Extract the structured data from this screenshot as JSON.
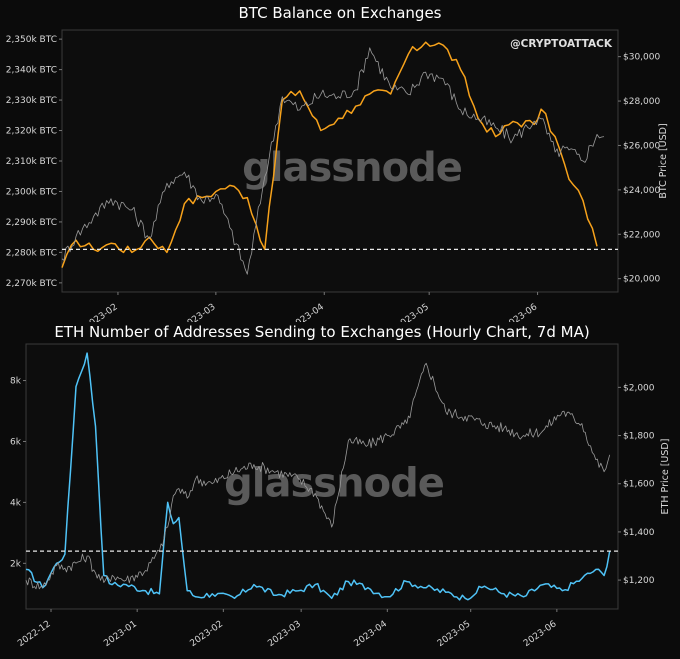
{
  "chart_data": [
    {
      "type": "line",
      "title": "BTC Balance on Exchanges",
      "watermark": "glassnode",
      "handle": "@CRYPTOATTACK",
      "ylabel_right": "BTC Price [USD]",
      "x_ticks": [
        "2023-02",
        "2023-03",
        "2023-04",
        "2023-05",
        "2023-06"
      ],
      "y_left_ticks": [
        "2,270k BTC",
        "2,280k BTC",
        "2,290k BTC",
        "2,300k BTC",
        "2,310k BTC",
        "2,320k BTC",
        "2,330k BTC",
        "2,340k BTC",
        "2,350k BTC"
      ],
      "y_left_values": [
        2270,
        2280,
        2290,
        2300,
        2310,
        2320,
        2330,
        2340,
        2350
      ],
      "y_right_ticks": [
        "$20,000",
        "$22,000",
        "$24,000",
        "$26,000",
        "$28,000",
        "$30,000"
      ],
      "y_right_values": [
        20000,
        22000,
        24000,
        26000,
        28000,
        30000
      ],
      "ylim_left": [
        2267,
        2353
      ],
      "ylim_right": [
        19400,
        31200
      ],
      "xlim": [
        "2023-01-16",
        "2023-06-24"
      ],
      "grid": false,
      "series": [
        {
          "axis": "left",
          "color": "#f7a21b",
          "x": [
            "2023-01-16",
            "2023-01-20",
            "2023-01-25",
            "2023-01-30",
            "2023-02-05",
            "2023-02-10",
            "2023-02-15",
            "2023-02-20",
            "2023-02-25",
            "2023-03-01",
            "2023-03-05",
            "2023-03-10",
            "2023-03-15",
            "2023-03-20",
            "2023-03-25",
            "2023-03-31",
            "2023-04-05",
            "2023-04-10",
            "2023-04-14",
            "2023-04-20",
            "2023-04-25",
            "2023-04-30",
            "2023-05-05",
            "2023-05-10",
            "2023-05-15",
            "2023-05-20",
            "2023-05-25",
            "2023-05-31",
            "2023-06-02",
            "2023-06-06",
            "2023-06-10",
            "2023-06-14",
            "2023-06-18"
          ],
          "values": [
            2275,
            2284,
            2281,
            2283,
            2280,
            2285,
            2280,
            2296,
            2298,
            2300,
            2302,
            2298,
            2281,
            2330,
            2333,
            2320,
            2324,
            2328,
            2332,
            2332,
            2345,
            2349,
            2348,
            2340,
            2324,
            2318,
            2323,
            2322,
            2327,
            2318,
            2304,
            2297,
            2282
          ]
        },
        {
          "axis": "right",
          "color": "#9a9a9a",
          "x": [
            "2023-01-16",
            "2023-01-20",
            "2023-01-25",
            "2023-01-30",
            "2023-02-05",
            "2023-02-10",
            "2023-02-15",
            "2023-02-20",
            "2023-02-25",
            "2023-03-01",
            "2023-03-05",
            "2023-03-10",
            "2023-03-15",
            "2023-03-20",
            "2023-03-25",
            "2023-03-31",
            "2023-04-05",
            "2023-04-10",
            "2023-04-14",
            "2023-04-20",
            "2023-04-25",
            "2023-04-30",
            "2023-05-05",
            "2023-05-10",
            "2023-05-15",
            "2023-05-20",
            "2023-05-25",
            "2023-05-31",
            "2023-06-02",
            "2023-06-06",
            "2023-06-10",
            "2023-06-14",
            "2023-06-18",
            "2023-06-20"
          ],
          "values": [
            20900,
            21900,
            22800,
            23600,
            23100,
            21800,
            24300,
            24800,
            23500,
            23800,
            22300,
            20200,
            24600,
            28200,
            27600,
            28300,
            28200,
            28500,
            30400,
            28600,
            28300,
            29300,
            29000,
            27600,
            27200,
            26800,
            26300,
            27100,
            27200,
            25700,
            25800,
            25300,
            26500,
            26400
          ]
        }
      ],
      "reference_line": {
        "axis": "left",
        "value": 2281
      }
    },
    {
      "type": "line",
      "title": "ETH Number of Addresses Sending to Exchanges (Hourly Chart, 7d MA)",
      "watermark": "glassnode",
      "ylabel_right": "ETH Price [USD]",
      "x_ticks": [
        "2022-12",
        "2023-01",
        "2023-02",
        "2023-03",
        "2023-04",
        "2023-05",
        "2023-06"
      ],
      "y_left_ticks": [
        "2k",
        "4k",
        "6k",
        "8k"
      ],
      "y_left_values": [
        2000,
        4000,
        6000,
        8000
      ],
      "y_right_ticks": [
        "$1,200",
        "$1,400",
        "$1,600",
        "$1,800",
        "$2,000"
      ],
      "y_right_values": [
        1200,
        1400,
        1600,
        1800,
        2000
      ],
      "ylim_left": [
        500,
        9200
      ],
      "ylim_right": [
        1080,
        2180
      ],
      "xlim": [
        "2022-11-22",
        "2023-06-23"
      ],
      "grid": false,
      "series": [
        {
          "axis": "left",
          "color": "#4fc3f7",
          "x": [
            "2022-11-22",
            "2022-11-28",
            "2022-12-03",
            "2022-12-06",
            "2022-12-10",
            "2022-12-14",
            "2022-12-17",
            "2022-12-20",
            "2022-12-23",
            "2022-12-28",
            "2023-01-04",
            "2023-01-09",
            "2023-01-12",
            "2023-01-14",
            "2023-01-16",
            "2023-01-19",
            "2023-01-22",
            "2023-01-28",
            "2023-02-05",
            "2023-02-12",
            "2023-02-20",
            "2023-02-28",
            "2023-03-06",
            "2023-03-12",
            "2023-03-18",
            "2023-03-25",
            "2023-04-01",
            "2023-04-08",
            "2023-04-15",
            "2023-04-22",
            "2023-04-29",
            "2023-05-06",
            "2023-05-13",
            "2023-05-20",
            "2023-05-27",
            "2023-06-03",
            "2023-06-10",
            "2023-06-15",
            "2023-06-18",
            "2023-06-20"
          ],
          "values": [
            1800,
            1200,
            2000,
            2300,
            7800,
            8900,
            6500,
            1600,
            1300,
            1300,
            1100,
            1000,
            4000,
            3300,
            3500,
            1100,
            900,
            1000,
            850,
            1300,
            950,
            1100,
            1300,
            850,
            1400,
            1200,
            900,
            1400,
            1200,
            1050,
            850,
            1250,
            1000,
            900,
            1300,
            1100,
            1500,
            1800,
            1600,
            2400
          ]
        },
        {
          "axis": "right",
          "color": "#9a9a9a",
          "x": [
            "2022-11-22",
            "2022-11-28",
            "2022-12-03",
            "2022-12-06",
            "2022-12-10",
            "2022-12-14",
            "2022-12-17",
            "2022-12-20",
            "2022-12-23",
            "2022-12-28",
            "2023-01-04",
            "2023-01-09",
            "2023-01-12",
            "2023-01-14",
            "2023-01-16",
            "2023-01-19",
            "2023-01-22",
            "2023-01-28",
            "2023-02-05",
            "2023-02-12",
            "2023-02-20",
            "2023-02-28",
            "2023-03-06",
            "2023-03-12",
            "2023-03-18",
            "2023-03-25",
            "2023-04-01",
            "2023-04-08",
            "2023-04-15",
            "2023-04-22",
            "2023-04-29",
            "2023-05-06",
            "2023-05-13",
            "2023-05-20",
            "2023-05-27",
            "2023-06-03",
            "2023-06-10",
            "2023-06-15",
            "2023-06-18",
            "2023-06-20"
          ],
          "values": [
            1200,
            1170,
            1260,
            1250,
            1270,
            1300,
            1230,
            1190,
            1220,
            1200,
            1240,
            1320,
            1420,
            1550,
            1580,
            1540,
            1620,
            1600,
            1650,
            1680,
            1650,
            1620,
            1560,
            1420,
            1780,
            1760,
            1800,
            1850,
            2100,
            1900,
            1880,
            1850,
            1830,
            1800,
            1820,
            1900,
            1850,
            1700,
            1650,
            1720
          ]
        }
      ],
      "reference_line": {
        "axis": "left",
        "value": 2400
      }
    }
  ]
}
